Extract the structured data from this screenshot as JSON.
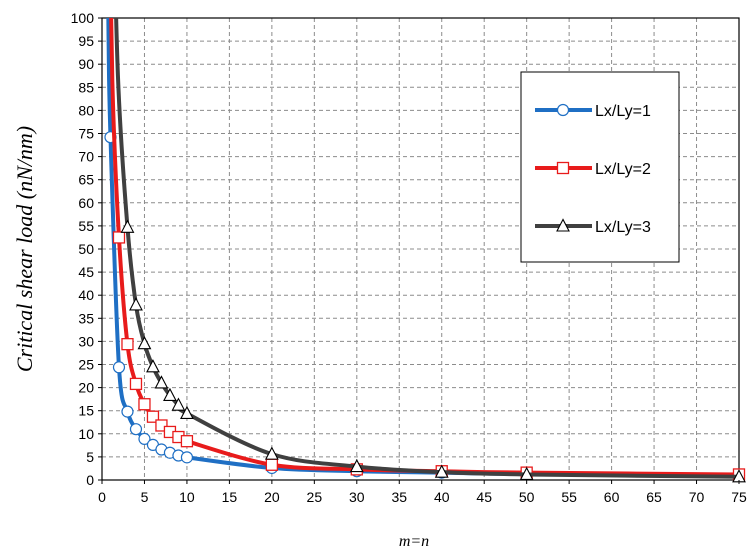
{
  "chart_data": {
    "type": "line",
    "title": "",
    "xlabel": "m=n",
    "ylabel": "Critical shear load (nN/nm)",
    "xlim": [
      0,
      75
    ],
    "ylim": [
      0,
      100
    ],
    "xticks": [
      0,
      5,
      10,
      15,
      20,
      25,
      30,
      35,
      40,
      45,
      50,
      55,
      60,
      65,
      70,
      75
    ],
    "yticks": [
      0,
      5,
      10,
      15,
      20,
      25,
      30,
      35,
      40,
      45,
      50,
      55,
      60,
      65,
      70,
      75,
      80,
      85,
      90,
      95,
      100
    ],
    "grid": true,
    "legend_position": "right",
    "series": [
      {
        "name": "Lx/Ly=1",
        "color": "#1f6fc4",
        "marker": "circle",
        "x": [
          1,
          2,
          3,
          4,
          5,
          6,
          7,
          8,
          9,
          10,
          20,
          30,
          40,
          50,
          75
        ],
        "y": [
          74.2,
          24.4,
          14.8,
          11.0,
          8.9,
          7.6,
          6.6,
          5.9,
          5.3,
          4.9,
          2.6,
          1.9,
          1.6,
          1.3,
          1.0
        ]
      },
      {
        "name": "Lx/Ly=2",
        "color": "#e81b1b",
        "marker": "square",
        "x": [
          2,
          3,
          4,
          5,
          6,
          7,
          8,
          9,
          10,
          20,
          30,
          40,
          50,
          75
        ],
        "y": [
          52.5,
          29.4,
          20.8,
          16.4,
          13.7,
          11.8,
          10.4,
          9.3,
          8.4,
          3.3,
          2.3,
          1.9,
          1.6,
          1.2
        ]
      },
      {
        "name": "Lx/Ly=3",
        "color": "#404040",
        "marker": "triangle",
        "x": [
          3,
          4,
          5,
          6,
          7,
          8,
          9,
          10,
          20,
          30,
          40,
          50,
          75
        ],
        "y": [
          54.7,
          37.9,
          29.5,
          24.5,
          21.0,
          18.3,
          16.2,
          14.4,
          5.6,
          2.9,
          1.7,
          1.2,
          0.7
        ]
      }
    ]
  }
}
